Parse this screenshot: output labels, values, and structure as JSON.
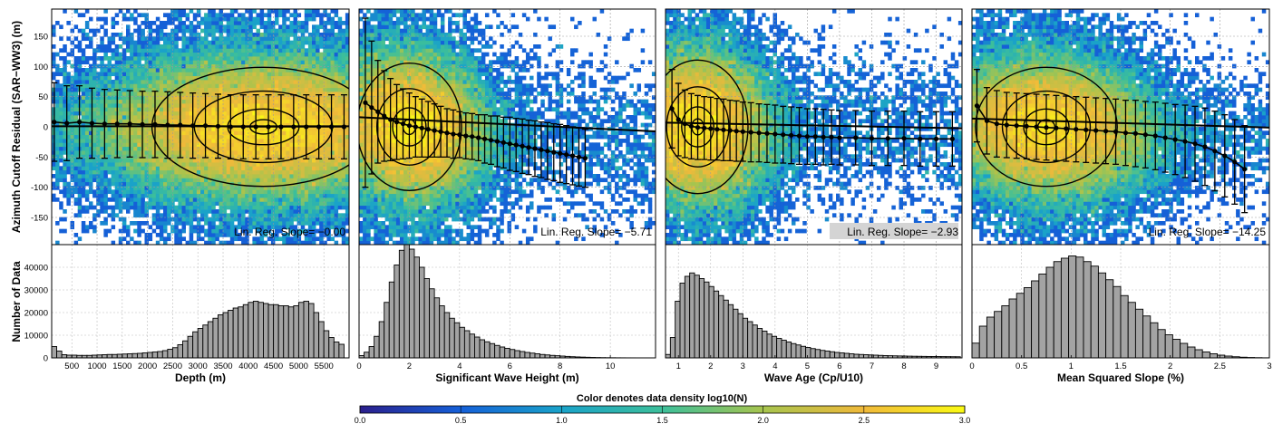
{
  "chart_data": {
    "type": "figure",
    "shared": {
      "residual_ylabel": "Azimuth Cutoff Residual (SAR−WW3) (m)",
      "count_ylabel": "Number of Data",
      "residual_yticks": [
        -150,
        -100,
        -50,
        0,
        50,
        100,
        150
      ],
      "residual_ylim": [
        -195,
        195
      ],
      "count_yticks": [
        0,
        10000,
        20000,
        30000,
        40000
      ],
      "count_ylim": [
        0,
        50000
      ],
      "grid": true
    },
    "colorbar": {
      "title": "Color denotes data density log10(N)",
      "ticks": [
        "0.0",
        "0.5",
        "1.0",
        "1.5",
        "2.0",
        "2.5",
        "3.0"
      ],
      "range": [
        0,
        3
      ],
      "colors": [
        "#2b1f8c",
        "#1560d8",
        "#1aa3c9",
        "#3dbf9a",
        "#a7c44e",
        "#f0b93a",
        "#fafa14"
      ]
    },
    "panels": [
      {
        "type": "density-scatter+histogram",
        "xlabel": "Depth (m)",
        "xlim": [
          100,
          6000
        ],
        "xticks": [
          "500",
          "1000",
          "1500",
          "2000",
          "2500",
          "3000",
          "3500",
          "4000",
          "4500",
          "5000",
          "5500"
        ],
        "xtick_values": [
          500,
          1000,
          1500,
          2000,
          2500,
          3000,
          3500,
          4000,
          4500,
          5000,
          5500
        ],
        "slope_label": "Lin. Reg. Slope= −0.00",
        "slope_box": false,
        "regression": {
          "slope": 0.0,
          "intercept": 1
        },
        "binned_mean": {
          "x": [
            150,
            400,
            650,
            900,
            1150,
            1400,
            1650,
            1900,
            2150,
            2400,
            2650,
            2900,
            3150,
            3400,
            3650,
            3900,
            4150,
            4400,
            4650,
            4900,
            5150,
            5400,
            5650,
            5900
          ],
          "mean": [
            8,
            6,
            8,
            6,
            5,
            5,
            5,
            4,
            4,
            3,
            3,
            2,
            2,
            1,
            0,
            0,
            0,
            0,
            0,
            0,
            0,
            0,
            0,
            0
          ],
          "std": [
            65,
            62,
            60,
            58,
            57,
            56,
            55,
            55,
            55,
            55,
            54,
            54,
            53,
            53,
            53,
            53,
            53,
            53,
            53,
            53,
            53,
            53,
            53,
            53
          ]
        },
        "density": {
          "cx": 4300,
          "sx": 1700,
          "cy": 0,
          "sy": 58,
          "n": 90000
        },
        "histogram": {
          "bin_edges_start": 100,
          "bin_width": 100,
          "counts": [
            5000,
            3000,
            1400,
            1200,
            1200,
            1100,
            1100,
            1100,
            1200,
            1300,
            1400,
            1500,
            1500,
            1600,
            1700,
            1800,
            1900,
            2000,
            2200,
            2400,
            2600,
            2800,
            3200,
            3800,
            4500,
            5800,
            7500,
            9500,
            11500,
            13000,
            14500,
            16000,
            17500,
            19000,
            20000,
            21000,
            22000,
            22500,
            23500,
            24500,
            25000,
            24500,
            24000,
            23500,
            23500,
            23000,
            23000,
            22500,
            23000,
            24500,
            25000,
            24000,
            20000,
            16000,
            12000,
            9000,
            7000,
            6000
          ]
        }
      },
      {
        "type": "density-scatter+histogram",
        "xlabel": "Significant Wave Height (m)",
        "xlim": [
          0,
          11.8
        ],
        "xticks": [
          "0",
          "2",
          "4",
          "6",
          "8",
          "10"
        ],
        "xtick_values": [
          0,
          2,
          4,
          6,
          8,
          10
        ],
        "slope_label": "Lin. Reg. Slope= −5.71",
        "slope_box": false,
        "regression": {
          "slope": -5.71,
          "intercept": 12
        },
        "binned_mean": {
          "x": [
            0.25,
            0.5,
            0.75,
            1.0,
            1.25,
            1.5,
            1.75,
            2.0,
            2.25,
            2.5,
            2.75,
            3.0,
            3.25,
            3.5,
            3.75,
            4.0,
            4.25,
            4.5,
            4.75,
            5.0,
            5.25,
            5.5,
            5.75,
            6.0,
            6.25,
            6.5,
            6.75,
            7.0,
            7.25,
            7.5,
            7.75,
            8.0,
            8.25,
            8.5,
            8.75,
            9.0
          ],
          "mean": [
            40,
            32,
            25,
            18,
            12,
            8,
            5,
            2,
            0,
            -2,
            -4,
            -6,
            -8,
            -10,
            -12,
            -13,
            -15,
            -16,
            -18,
            -20,
            -22,
            -24,
            -26,
            -28,
            -30,
            -32,
            -34,
            -36,
            -38,
            -40,
            -42,
            -44,
            -46,
            -48,
            -50,
            -52
          ],
          "std": [
            140,
            110,
            85,
            75,
            68,
            62,
            58,
            54,
            50,
            48,
            46,
            44,
            42,
            40,
            40,
            38,
            38,
            38,
            38,
            40,
            40,
            42,
            42,
            44,
            44,
            45,
            45,
            46,
            46,
            47,
            47,
            48,
            48,
            48,
            48,
            48
          ]
        },
        "density": {
          "cx": 2.0,
          "sx": 1.6,
          "cy": 0,
          "sy": 62,
          "n": 90000
        },
        "histogram": {
          "bin_edges_start": 0,
          "bin_width": 0.2,
          "counts": [
            1000,
            2500,
            5000,
            9500,
            16000,
            24500,
            33500,
            41000,
            47500,
            50000,
            48000,
            44500,
            40000,
            35000,
            30500,
            26500,
            23000,
            20000,
            17500,
            15500,
            13500,
            12000,
            10500,
            9200,
            8000,
            7100,
            6300,
            5500,
            4800,
            4200,
            3700,
            3200,
            2800,
            2400,
            2100,
            1800,
            1500,
            1300,
            1100,
            950,
            800,
            650,
            520,
            420,
            340,
            270,
            210,
            160,
            120,
            90,
            70,
            50,
            40,
            30,
            25,
            20,
            15,
            12
          ]
        }
      },
      {
        "type": "density-scatter+histogram",
        "xlabel": "Wave Age (Cp/U10)",
        "xlim": [
          0.6,
          9.8
        ],
        "xticks": [
          "1",
          "2",
          "3",
          "4",
          "5",
          "6",
          "7",
          "8",
          "9"
        ],
        "xtick_values": [
          1,
          2,
          3,
          4,
          5,
          6,
          7,
          8,
          9
        ],
        "slope_label": "Lin. Reg. Slope= −2.93",
        "slope_box": true,
        "regression": {
          "slope": -2.93,
          "intercept": 6
        },
        "binned_mean": {
          "x": [
            0.8,
            1.0,
            1.2,
            1.4,
            1.6,
            1.8,
            2.0,
            2.2,
            2.4,
            2.6,
            2.8,
            3.0,
            3.25,
            3.5,
            3.75,
            4.0,
            4.25,
            4.5,
            4.75,
            5.0,
            5.25,
            5.5,
            5.75,
            6.0,
            6.5,
            7.0,
            7.5,
            8.0,
            8.5,
            9.0,
            9.5
          ],
          "mean": [
            30,
            12,
            5,
            1,
            -1,
            -2,
            -3,
            -4,
            -5,
            -6,
            -7,
            -8,
            -9,
            -10,
            -11,
            -12,
            -13,
            -14,
            -15,
            -16,
            -16,
            -17,
            -17,
            -18,
            -18,
            -19,
            -19,
            -19,
            -20,
            -20,
            -20
          ],
          "std": [
            65,
            60,
            56,
            54,
            53,
            52,
            52,
            51,
            51,
            50,
            50,
            49,
            49,
            48,
            48,
            48,
            47,
            47,
            47,
            46,
            46,
            46,
            45,
            45,
            45,
            45,
            45,
            45,
            45,
            45,
            45
          ]
        },
        "density": {
          "cx": 1.6,
          "sx": 1.2,
          "cy": 0,
          "sy": 65,
          "n": 90000
        },
        "histogram": {
          "bin_edges_start": 0.6,
          "bin_width": 0.15,
          "counts": [
            1500,
            9000,
            25000,
            33000,
            36000,
            37500,
            36500,
            35000,
            33500,
            31500,
            29500,
            27500,
            25500,
            23500,
            21500,
            19500,
            17500,
            16000,
            14500,
            13000,
            11800,
            10500,
            9500,
            8600,
            7800,
            7000,
            6300,
            5700,
            5100,
            4600,
            4100,
            3700,
            3300,
            3000,
            2700,
            2400,
            2200,
            2000,
            1800,
            1600,
            1500,
            1400,
            1300,
            1200,
            1100,
            1000,
            950,
            900,
            850,
            800,
            760,
            720,
            690,
            660,
            630,
            600,
            580,
            560,
            540,
            520,
            500
          ]
        }
      },
      {
        "type": "density-scatter+histogram",
        "xlabel": "Mean Squared Slope (%)",
        "xlim": [
          0,
          3
        ],
        "xticks": [
          "0",
          "0.5",
          "1",
          "1.5",
          "2",
          "2.5",
          "3"
        ],
        "xtick_values": [
          0,
          0.5,
          1,
          1.5,
          2,
          2.5,
          3
        ],
        "slope_label": "Lin. Reg. Slope= −14.25",
        "slope_box": false,
        "regression": {
          "slope": -14.25,
          "intercept": 10
        },
        "binned_mean": {
          "x": [
            0.05,
            0.15,
            0.25,
            0.35,
            0.45,
            0.55,
            0.65,
            0.75,
            0.85,
            0.95,
            1.05,
            1.15,
            1.25,
            1.35,
            1.45,
            1.55,
            1.65,
            1.75,
            1.85,
            1.95,
            2.05,
            2.15,
            2.25,
            2.35,
            2.45,
            2.55,
            2.65,
            2.75
          ],
          "mean": [
            35,
            10,
            5,
            3,
            2,
            1,
            0,
            -1,
            -2,
            -3,
            -4,
            -5,
            -6,
            -7,
            -8,
            -10,
            -11,
            -13,
            -15,
            -18,
            -21,
            -24,
            -28,
            -33,
            -40,
            -48,
            -58,
            -70
          ],
          "std": [
            60,
            55,
            55,
            54,
            54,
            54,
            54,
            54,
            54,
            54,
            54,
            54,
            54,
            54,
            54,
            54,
            55,
            55,
            56,
            57,
            58,
            60,
            62,
            64,
            66,
            68,
            70,
            72
          ]
        },
        "density": {
          "cx": 0.75,
          "sx": 0.55,
          "cy": 0,
          "sy": 58,
          "n": 90000
        },
        "histogram": {
          "bin_edges_start": 0,
          "bin_width": 0.075,
          "counts": [
            6500,
            14000,
            18000,
            20500,
            23000,
            26000,
            28500,
            31000,
            34000,
            37000,
            40000,
            42500,
            44000,
            45000,
            44500,
            42500,
            40500,
            37500,
            34500,
            31500,
            27500,
            24500,
            21500,
            18500,
            15500,
            12500,
            10200,
            8200,
            6400,
            4800,
            3600,
            2600,
            1800,
            1200,
            800,
            500,
            300,
            180,
            100,
            50
          ]
        }
      }
    ]
  }
}
